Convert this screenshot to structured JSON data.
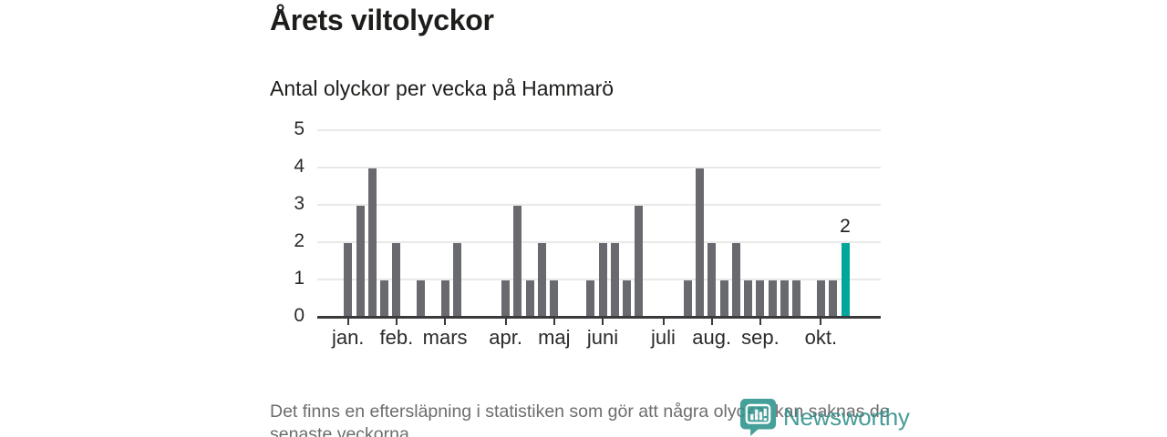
{
  "title": "Årets viltolyckor",
  "subtitle": "Antal olyckor per vecka på Hammarö",
  "footer": {
    "lines": [
      "Det finns en eftersläpning i statistiken som gör att några olyckor kan saknas de",
      "senaste veckorna."
    ]
  },
  "logo": {
    "text": "Newsworthy",
    "icon": "newsworthy-speech-bubble-bar-chart-icon",
    "color": "#2d8f8a"
  },
  "chart_data": {
    "type": "bar",
    "title": "Årets viltolyckor",
    "subtitle": "Antal olyckor per vecka på Hammarö",
    "x_unit": "vecka",
    "values": [
      2,
      3,
      4,
      1,
      2,
      0,
      1,
      0,
      1,
      2,
      0,
      0,
      0,
      1,
      3,
      1,
      2,
      1,
      0,
      0,
      1,
      2,
      2,
      1,
      3,
      0,
      0,
      0,
      1,
      4,
      2,
      1,
      2,
      1,
      1,
      1,
      1,
      1,
      0,
      1,
      1,
      2
    ],
    "month_ticks": [
      {
        "label": "jan.",
        "week_index": 0
      },
      {
        "label": "feb.",
        "week_index": 4
      },
      {
        "label": "mars",
        "week_index": 8
      },
      {
        "label": "apr.",
        "week_index": 13
      },
      {
        "label": "maj",
        "week_index": 17
      },
      {
        "label": "juni",
        "week_index": 21
      },
      {
        "label": "juli",
        "week_index": 26
      },
      {
        "label": "aug.",
        "week_index": 30
      },
      {
        "label": "sep.",
        "week_index": 34
      },
      {
        "label": "okt.",
        "week_index": 39
      }
    ],
    "yticks": [
      0,
      1,
      2,
      3,
      4,
      5
    ],
    "ylim": [
      0,
      5
    ],
    "grid": "horizontal",
    "legend": "none",
    "bar_color": "#696970",
    "highlight": {
      "index": 41,
      "value": 2,
      "label": "2",
      "color": "#00a69c"
    }
  }
}
